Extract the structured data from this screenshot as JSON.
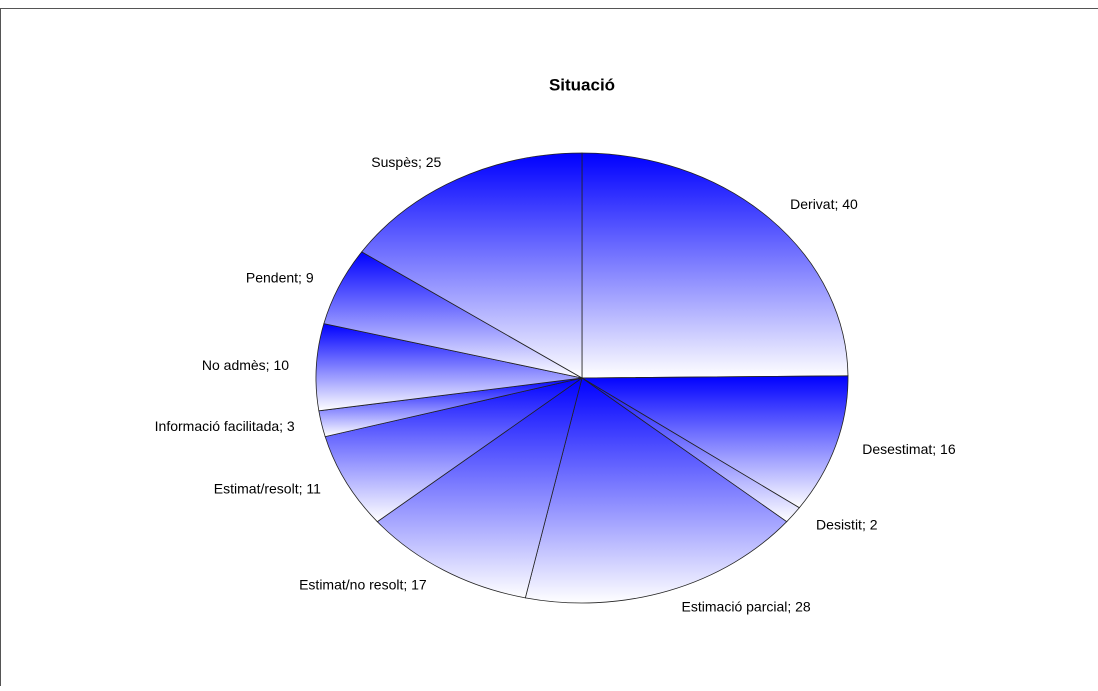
{
  "chart_data": {
    "type": "pie",
    "title": "Situació",
    "categories": [
      "Derivat",
      "Desestimat",
      "Desistit",
      "Estimació parcial",
      "Estimat/no resolt",
      "Estimat/resolt",
      "Informació facilitada",
      "No admès",
      "Pendent",
      "Suspès"
    ],
    "values": [
      40,
      16,
      2,
      28,
      17,
      11,
      3,
      10,
      9,
      25
    ],
    "value_labels": [
      "Derivat; 40",
      "Desestimat; 16",
      "Desistit; 2",
      "Estimació parcial; 28",
      "Estimat/no resolt; 17",
      "Estimat/resolt; 11",
      "Informació facilitada; 3",
      "No admès; 10",
      "Pendent; 9",
      "Suspès; 25"
    ],
    "color": "#0000ff"
  }
}
